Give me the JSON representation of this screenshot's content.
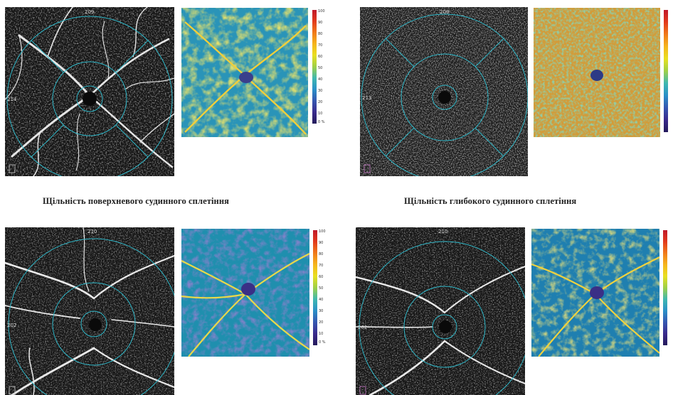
{
  "captions": {
    "superficial": "Щільність поверхневого судинного сплетіння",
    "deep": "Щільність глибокого судинного сплетіння"
  },
  "panels": [
    {
      "id": "top-left",
      "kind": "angiogram",
      "grid_top_label": "209",
      "grid_left_label": "214"
    },
    {
      "id": "top-left-map",
      "kind": "density-map",
      "palette": "yellow-green"
    },
    {
      "id": "top-right",
      "kind": "angiogram",
      "grid_top_label": "209",
      "grid_left_label": "213"
    },
    {
      "id": "top-right-map",
      "kind": "density-map",
      "palette": "orange"
    },
    {
      "id": "bottom-left",
      "kind": "angiogram",
      "grid_top_label": "210",
      "grid_left_label": "202"
    },
    {
      "id": "bottom-left-map",
      "kind": "density-map",
      "palette": "blue"
    },
    {
      "id": "bottom-right",
      "kind": "angiogram",
      "grid_top_label": "210",
      "grid_left_label": "202"
    },
    {
      "id": "bottom-right-map",
      "kind": "density-map",
      "palette": "blue"
    }
  ],
  "density_scale": {
    "ticks": [
      "100",
      "90",
      "80",
      "70",
      "60",
      "50",
      "40",
      "30",
      "20",
      "10",
      "0 %"
    ],
    "colors": [
      "#c0182a",
      "#e23a1c",
      "#f07a1a",
      "#f5b51c",
      "#e8e020",
      "#9ed048",
      "#3fb8b0",
      "#2a90c8",
      "#3556b0",
      "#3a2a8c",
      "#241a5a"
    ]
  },
  "colors": {
    "grid_circle": "#2fb7c8",
    "vessel": "#e6e6e6",
    "background": "#161616"
  }
}
